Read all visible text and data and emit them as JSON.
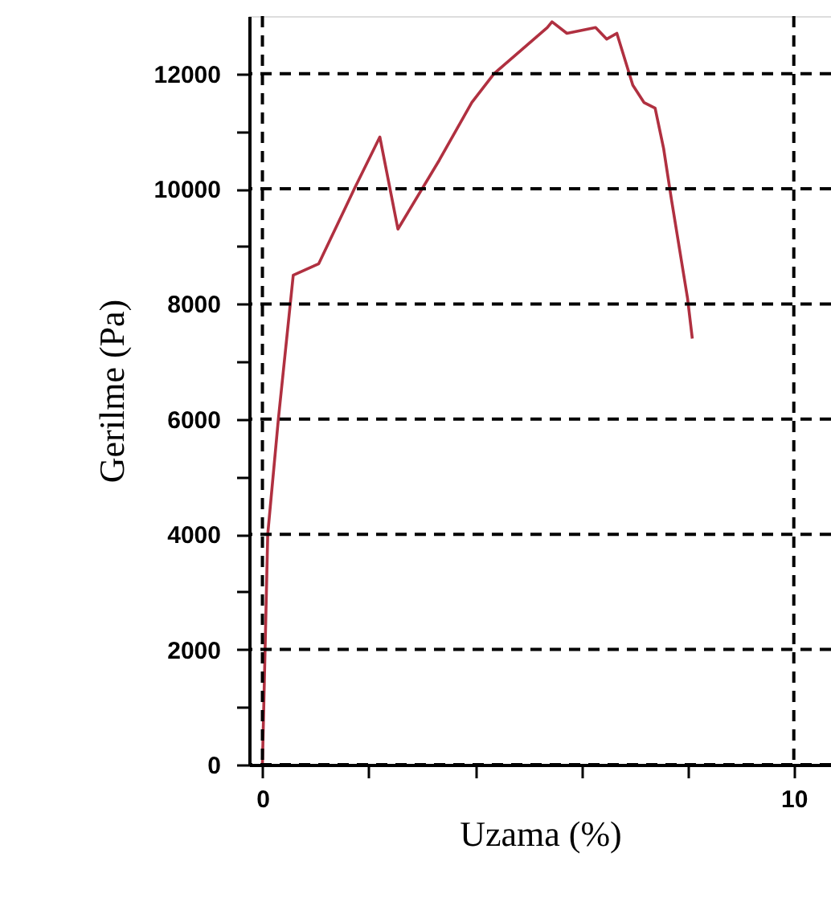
{
  "chart_data": {
    "type": "line",
    "xlabel": "Uzama (%)",
    "ylabel": "Gerilme (Pa)",
    "xlim": [
      -0.25,
      10.7
    ],
    "ylim": [
      0,
      13000
    ],
    "xticks": [
      0,
      {
        "value": 2,
        "label": null
      },
      {
        "value": 4,
        "label": null
      },
      {
        "value": 6,
        "label": null
      },
      {
        "value": 8,
        "label": null
      },
      10
    ],
    "yticks": [
      0,
      {
        "value": 1000,
        "label": null
      },
      2000,
      {
        "value": 3000,
        "label": null
      },
      4000,
      {
        "value": 5000,
        "label": null
      },
      6000,
      {
        "value": 7000,
        "label": null
      },
      8000,
      {
        "value": 9000,
        "label": null
      },
      10000,
      {
        "value": 11000,
        "label": null
      },
      12000
    ],
    "grid": true,
    "line_style": "solid",
    "marker": "none",
    "series": [
      {
        "color": "#b03040",
        "x": [
          0,
          0.1,
          0.3,
          0.58,
          1.06,
          1.73,
          2.21,
          2.55,
          3.33,
          3.94,
          4.36,
          5.36,
          5.45,
          5.73,
          6.27,
          6.48,
          6.67,
          6.97,
          7.18,
          7.39,
          7.55,
          7.7,
          8.0,
          8.09
        ],
        "values": [
          0,
          4000,
          6000,
          8500,
          8700,
          10000,
          10900,
          9300,
          10500,
          11500,
          12000,
          12800,
          12900,
          12700,
          12800,
          12600,
          12700,
          11800,
          11500,
          11400,
          10700,
          9800,
          8100,
          7400
        ]
      }
    ]
  }
}
